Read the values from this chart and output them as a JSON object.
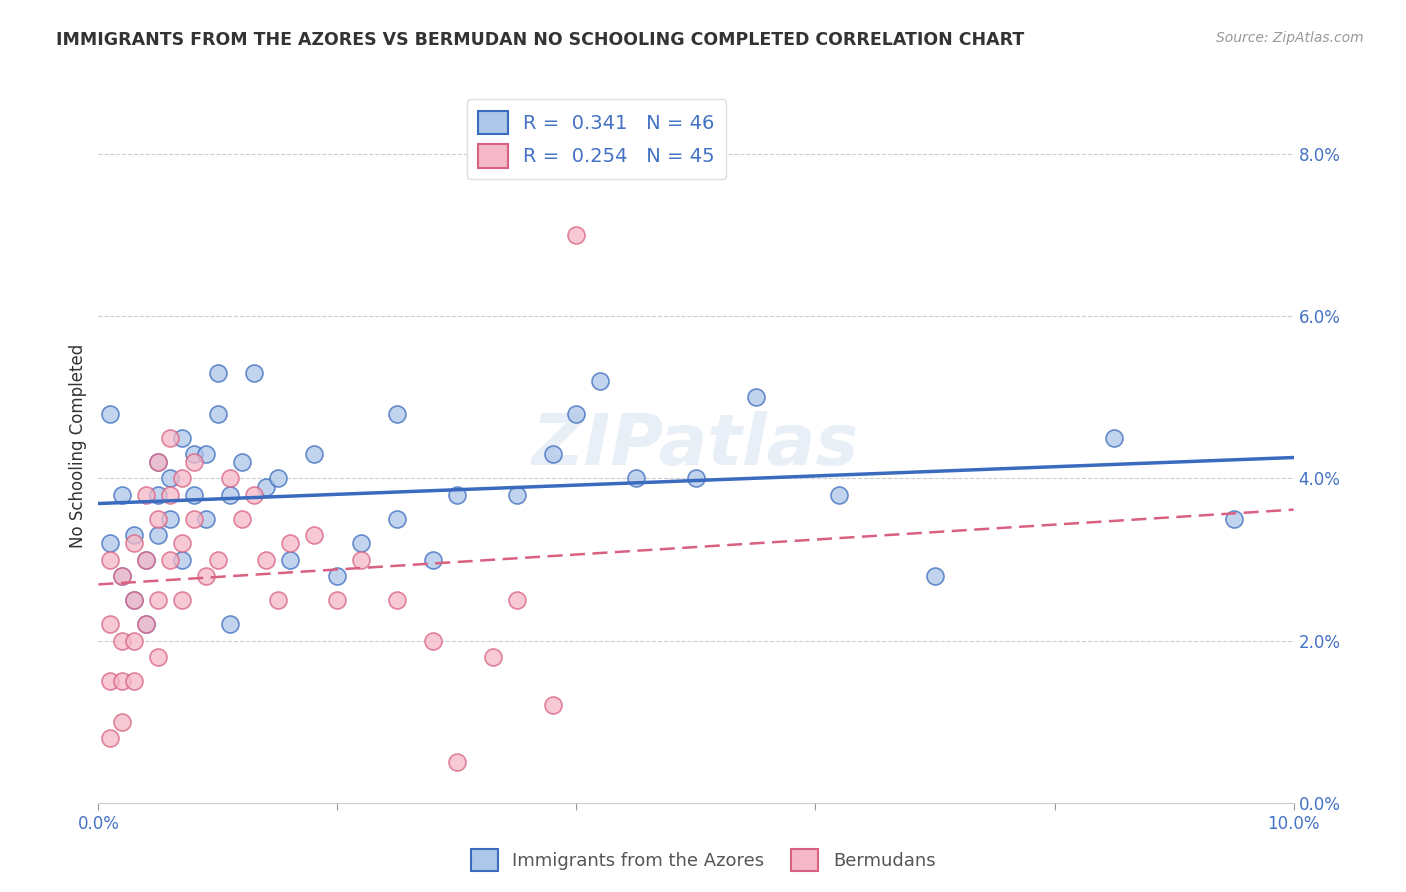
{
  "title": "IMMIGRANTS FROM THE AZORES VS BERMUDAN NO SCHOOLING COMPLETED CORRELATION CHART",
  "source": "Source: ZipAtlas.com",
  "ylabel": "No Schooling Completed",
  "xlim": [
    0.0,
    0.1
  ],
  "ylim": [
    0.0,
    0.088
  ],
  "legend_labels": [
    "Immigrants from the Azores",
    "Bermudans"
  ],
  "R_azores": 0.341,
  "N_azores": 46,
  "R_bermuda": 0.254,
  "N_bermuda": 45,
  "color_azores": "#aec6e8",
  "color_bermuda": "#f5b8c8",
  "color_line_azores": "#3a6bbf",
  "color_line_bermuda": "#d96080",
  "watermark": "ZIPatlas",
  "azores_x": [
    0.001,
    0.001,
    0.002,
    0.002,
    0.003,
    0.003,
    0.004,
    0.004,
    0.005,
    0.005,
    0.005,
    0.006,
    0.006,
    0.007,
    0.007,
    0.008,
    0.008,
    0.009,
    0.009,
    0.01,
    0.01,
    0.011,
    0.011,
    0.012,
    0.013,
    0.014,
    0.015,
    0.016,
    0.018,
    0.02,
    0.022,
    0.025,
    0.025,
    0.028,
    0.03,
    0.035,
    0.038,
    0.04,
    0.042,
    0.045,
    0.05,
    0.055,
    0.062,
    0.07,
    0.085,
    0.095
  ],
  "azores_y": [
    0.032,
    0.048,
    0.028,
    0.038,
    0.025,
    0.033,
    0.03,
    0.022,
    0.038,
    0.033,
    0.042,
    0.04,
    0.035,
    0.045,
    0.03,
    0.038,
    0.043,
    0.043,
    0.035,
    0.048,
    0.053,
    0.038,
    0.022,
    0.042,
    0.053,
    0.039,
    0.04,
    0.03,
    0.043,
    0.028,
    0.032,
    0.035,
    0.048,
    0.03,
    0.038,
    0.038,
    0.043,
    0.048,
    0.052,
    0.04,
    0.04,
    0.05,
    0.038,
    0.028,
    0.045,
    0.035
  ],
  "bermuda_x": [
    0.001,
    0.001,
    0.001,
    0.001,
    0.002,
    0.002,
    0.002,
    0.002,
    0.003,
    0.003,
    0.003,
    0.003,
    0.004,
    0.004,
    0.004,
    0.005,
    0.005,
    0.005,
    0.005,
    0.006,
    0.006,
    0.006,
    0.007,
    0.007,
    0.007,
    0.008,
    0.008,
    0.009,
    0.01,
    0.011,
    0.012,
    0.013,
    0.014,
    0.015,
    0.016,
    0.018,
    0.02,
    0.022,
    0.025,
    0.028,
    0.03,
    0.033,
    0.035,
    0.038,
    0.04
  ],
  "bermuda_y": [
    0.03,
    0.022,
    0.015,
    0.008,
    0.028,
    0.02,
    0.015,
    0.01,
    0.032,
    0.025,
    0.02,
    0.015,
    0.038,
    0.03,
    0.022,
    0.042,
    0.035,
    0.025,
    0.018,
    0.045,
    0.038,
    0.03,
    0.04,
    0.032,
    0.025,
    0.042,
    0.035,
    0.028,
    0.03,
    0.04,
    0.035,
    0.038,
    0.03,
    0.025,
    0.032,
    0.033,
    0.025,
    0.03,
    0.025,
    0.02,
    0.005,
    0.018,
    0.025,
    0.012,
    0.07
  ]
}
